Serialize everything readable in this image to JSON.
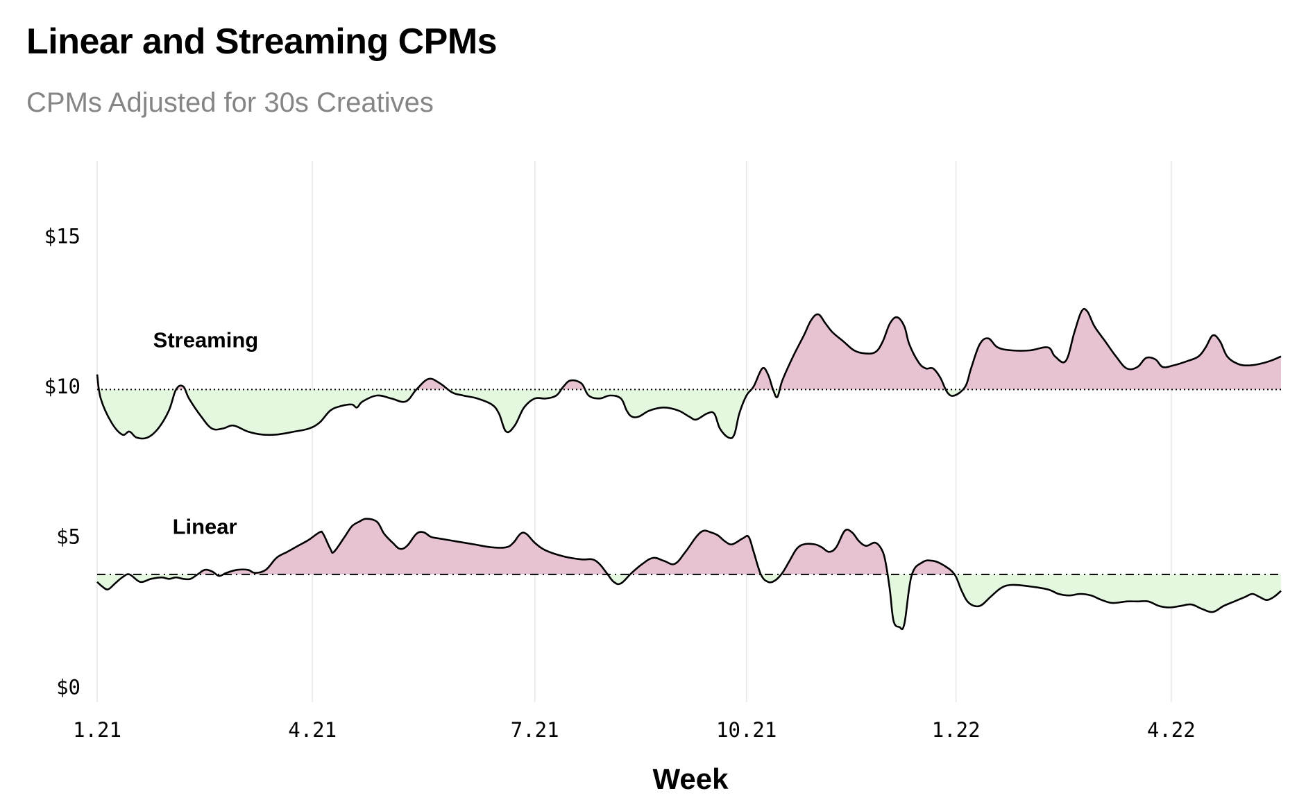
{
  "title": "Linear and Streaming CPMs",
  "subtitle": "CPMs Adjusted for 30s Creatives",
  "colors": {
    "above": "#e7c2d3",
    "below": "#e4f8df",
    "grid": "#e6e6e6",
    "line": "#000000",
    "text": "#000000"
  },
  "chart_data": {
    "type": "area",
    "title": "Linear and Streaming CPMs",
    "subtitle": "CPMs Adjusted for 30s Creatives",
    "xlabel": "Week",
    "ylabel": "",
    "x_range": [
      0,
      16.5
    ],
    "x_ticks": [
      {
        "value": 0,
        "label": "1.21"
      },
      {
        "value": 3,
        "label": "4.21"
      },
      {
        "value": 6.1,
        "label": "7.21"
      },
      {
        "value": 9.05,
        "label": "10.21"
      },
      {
        "value": 11.97,
        "label": "1.22"
      },
      {
        "value": 14.97,
        "label": "4.22"
      }
    ],
    "y_range": [
      -0.5,
      17.5
    ],
    "y_ticks": [
      {
        "value": 0,
        "label": "$0"
      },
      {
        "value": 5,
        "label": "$5"
      },
      {
        "value": 10,
        "label": "$10"
      },
      {
        "value": 15,
        "label": "$15"
      }
    ],
    "grid": "vertical",
    "series": [
      {
        "name": "Streaming",
        "baseline": 9.9,
        "baseline_style": "dotted",
        "label_at": [
          0.78,
          11.3
        ],
        "points": [
          [
            0,
            10.4
          ],
          [
            0.05,
            9.6
          ],
          [
            0.2,
            8.8
          ],
          [
            0.35,
            8.4
          ],
          [
            0.45,
            8.5
          ],
          [
            0.55,
            8.3
          ],
          [
            0.7,
            8.3
          ],
          [
            0.85,
            8.6
          ],
          [
            1.0,
            9.2
          ],
          [
            1.1,
            9.9
          ],
          [
            1.2,
            10.0
          ],
          [
            1.28,
            9.6
          ],
          [
            1.45,
            9.0
          ],
          [
            1.6,
            8.6
          ],
          [
            1.75,
            8.6
          ],
          [
            1.9,
            8.7
          ],
          [
            2.1,
            8.5
          ],
          [
            2.3,
            8.4
          ],
          [
            2.5,
            8.4
          ],
          [
            2.75,
            8.5
          ],
          [
            2.95,
            8.6
          ],
          [
            3.1,
            8.8
          ],
          [
            3.25,
            9.2
          ],
          [
            3.4,
            9.35
          ],
          [
            3.55,
            9.4
          ],
          [
            3.62,
            9.3
          ],
          [
            3.7,
            9.5
          ],
          [
            3.9,
            9.7
          ],
          [
            4.1,
            9.6
          ],
          [
            4.3,
            9.5
          ],
          [
            4.45,
            9.9
          ],
          [
            4.62,
            10.25
          ],
          [
            4.78,
            10.1
          ],
          [
            4.95,
            9.8
          ],
          [
            5.1,
            9.7
          ],
          [
            5.3,
            9.6
          ],
          [
            5.5,
            9.4
          ],
          [
            5.6,
            9.1
          ],
          [
            5.7,
            8.5
          ],
          [
            5.82,
            8.7
          ],
          [
            5.95,
            9.3
          ],
          [
            6.1,
            9.6
          ],
          [
            6.25,
            9.6
          ],
          [
            6.4,
            9.7
          ],
          [
            6.5,
            10.0
          ],
          [
            6.6,
            10.2
          ],
          [
            6.75,
            10.1
          ],
          [
            6.85,
            9.7
          ],
          [
            7.0,
            9.6
          ],
          [
            7.15,
            9.7
          ],
          [
            7.3,
            9.6
          ],
          [
            7.38,
            9.2
          ],
          [
            7.45,
            9.0
          ],
          [
            7.55,
            9.0
          ],
          [
            7.7,
            9.2
          ],
          [
            7.9,
            9.3
          ],
          [
            8.1,
            9.2
          ],
          [
            8.25,
            9.0
          ],
          [
            8.35,
            8.9
          ],
          [
            8.5,
            9.1
          ],
          [
            8.6,
            9.1
          ],
          [
            8.68,
            8.6
          ],
          [
            8.8,
            8.3
          ],
          [
            8.88,
            8.4
          ],
          [
            8.95,
            9.1
          ],
          [
            9.05,
            9.7
          ],
          [
            9.15,
            10.0
          ],
          [
            9.27,
            10.6
          ],
          [
            9.35,
            10.4
          ],
          [
            9.42,
            9.9
          ],
          [
            9.48,
            9.65
          ],
          [
            9.55,
            10.2
          ],
          [
            9.7,
            11.0
          ],
          [
            9.85,
            11.7
          ],
          [
            9.95,
            12.2
          ],
          [
            10.05,
            12.4
          ],
          [
            10.15,
            12.1
          ],
          [
            10.25,
            11.8
          ],
          [
            10.4,
            11.5
          ],
          [
            10.55,
            11.2
          ],
          [
            10.7,
            11.1
          ],
          [
            10.85,
            11.15
          ],
          [
            10.95,
            11.5
          ],
          [
            11.05,
            12.1
          ],
          [
            11.15,
            12.3
          ],
          [
            11.25,
            12.0
          ],
          [
            11.32,
            11.4
          ],
          [
            11.45,
            10.8
          ],
          [
            11.55,
            10.6
          ],
          [
            11.65,
            10.6
          ],
          [
            11.75,
            10.3
          ],
          [
            11.85,
            9.8
          ],
          [
            11.95,
            9.7
          ],
          [
            12.1,
            10.0
          ],
          [
            12.18,
            10.6
          ],
          [
            12.3,
            11.4
          ],
          [
            12.42,
            11.6
          ],
          [
            12.55,
            11.3
          ],
          [
            12.75,
            11.2
          ],
          [
            13.0,
            11.2
          ],
          [
            13.25,
            11.3
          ],
          [
            13.35,
            11.0
          ],
          [
            13.5,
            10.85
          ],
          [
            13.62,
            11.8
          ],
          [
            13.72,
            12.5
          ],
          [
            13.8,
            12.5
          ],
          [
            13.9,
            12.0
          ],
          [
            14.05,
            11.5
          ],
          [
            14.2,
            11.0
          ],
          [
            14.35,
            10.6
          ],
          [
            14.5,
            10.65
          ],
          [
            14.62,
            10.95
          ],
          [
            14.75,
            10.9
          ],
          [
            14.85,
            10.65
          ],
          [
            15.0,
            10.7
          ],
          [
            15.2,
            10.85
          ],
          [
            15.35,
            11.0
          ],
          [
            15.45,
            11.3
          ],
          [
            15.55,
            11.7
          ],
          [
            15.65,
            11.5
          ],
          [
            15.75,
            11.0
          ],
          [
            15.9,
            10.75
          ],
          [
            16.05,
            10.7
          ],
          [
            16.2,
            10.75
          ],
          [
            16.35,
            10.85
          ],
          [
            16.5,
            11.0
          ]
        ]
      },
      {
        "name": "Linear",
        "baseline": 3.75,
        "baseline_style": "dash-dot",
        "label_at": [
          1.05,
          5.1
        ],
        "points": [
          [
            0,
            3.5
          ],
          [
            0.07,
            3.35
          ],
          [
            0.15,
            3.25
          ],
          [
            0.25,
            3.45
          ],
          [
            0.35,
            3.65
          ],
          [
            0.45,
            3.75
          ],
          [
            0.6,
            3.5
          ],
          [
            0.75,
            3.6
          ],
          [
            0.9,
            3.65
          ],
          [
            1.0,
            3.6
          ],
          [
            1.1,
            3.65
          ],
          [
            1.2,
            3.6
          ],
          [
            1.3,
            3.6
          ],
          [
            1.4,
            3.75
          ],
          [
            1.5,
            3.9
          ],
          [
            1.6,
            3.85
          ],
          [
            1.7,
            3.7
          ],
          [
            1.8,
            3.8
          ],
          [
            1.95,
            3.9
          ],
          [
            2.1,
            3.9
          ],
          [
            2.2,
            3.8
          ],
          [
            2.35,
            3.9
          ],
          [
            2.5,
            4.3
          ],
          [
            2.65,
            4.5
          ],
          [
            2.8,
            4.7
          ],
          [
            2.95,
            4.9
          ],
          [
            3.1,
            5.15
          ],
          [
            3.15,
            5.1
          ],
          [
            3.25,
            4.6
          ],
          [
            3.3,
            4.5
          ],
          [
            3.45,
            5.0
          ],
          [
            3.55,
            5.35
          ],
          [
            3.65,
            5.5
          ],
          [
            3.75,
            5.6
          ],
          [
            3.9,
            5.5
          ],
          [
            4.0,
            5.1
          ],
          [
            4.12,
            4.8
          ],
          [
            4.22,
            4.6
          ],
          [
            4.32,
            4.7
          ],
          [
            4.45,
            5.1
          ],
          [
            4.55,
            5.15
          ],
          [
            4.65,
            5.0
          ],
          [
            4.75,
            4.95
          ],
          [
            5.0,
            4.85
          ],
          [
            5.25,
            4.75
          ],
          [
            5.5,
            4.65
          ],
          [
            5.7,
            4.65
          ],
          [
            5.8,
            4.8
          ],
          [
            5.9,
            5.1
          ],
          [
            5.98,
            5.1
          ],
          [
            6.1,
            4.8
          ],
          [
            6.25,
            4.55
          ],
          [
            6.5,
            4.35
          ],
          [
            6.75,
            4.25
          ],
          [
            6.9,
            4.25
          ],
          [
            7.0,
            4.1
          ],
          [
            7.1,
            3.8
          ],
          [
            7.2,
            3.5
          ],
          [
            7.3,
            3.45
          ],
          [
            7.45,
            3.8
          ],
          [
            7.6,
            4.1
          ],
          [
            7.75,
            4.3
          ],
          [
            7.9,
            4.2
          ],
          [
            8.05,
            4.1
          ],
          [
            8.2,
            4.5
          ],
          [
            8.35,
            5.0
          ],
          [
            8.45,
            5.2
          ],
          [
            8.55,
            5.15
          ],
          [
            8.65,
            5.05
          ],
          [
            8.75,
            4.85
          ],
          [
            8.85,
            4.75
          ],
          [
            9.0,
            4.95
          ],
          [
            9.08,
            5.0
          ],
          [
            9.15,
            4.5
          ],
          [
            9.25,
            3.75
          ],
          [
            9.35,
            3.5
          ],
          [
            9.45,
            3.55
          ],
          [
            9.55,
            3.8
          ],
          [
            9.65,
            4.2
          ],
          [
            9.75,
            4.6
          ],
          [
            9.85,
            4.75
          ],
          [
            10.0,
            4.75
          ],
          [
            10.1,
            4.65
          ],
          [
            10.2,
            4.5
          ],
          [
            10.3,
            4.65
          ],
          [
            10.42,
            5.2
          ],
          [
            10.52,
            5.15
          ],
          [
            10.62,
            4.85
          ],
          [
            10.72,
            4.7
          ],
          [
            10.85,
            4.8
          ],
          [
            10.95,
            4.5
          ],
          [
            11.0,
            4.0
          ],
          [
            11.05,
            3.2
          ],
          [
            11.1,
            2.2
          ],
          [
            11.18,
            2.0
          ],
          [
            11.25,
            2.1
          ],
          [
            11.35,
            3.7
          ],
          [
            11.5,
            4.15
          ],
          [
            11.65,
            4.2
          ],
          [
            11.8,
            4.05
          ],
          [
            11.95,
            3.75
          ],
          [
            12.05,
            3.2
          ],
          [
            12.15,
            2.8
          ],
          [
            12.3,
            2.7
          ],
          [
            12.45,
            3.0
          ],
          [
            12.6,
            3.3
          ],
          [
            12.75,
            3.4
          ],
          [
            13.0,
            3.35
          ],
          [
            13.25,
            3.25
          ],
          [
            13.4,
            3.1
          ],
          [
            13.55,
            3.05
          ],
          [
            13.7,
            3.1
          ],
          [
            13.85,
            3.05
          ],
          [
            14.0,
            2.9
          ],
          [
            14.15,
            2.8
          ],
          [
            14.35,
            2.85
          ],
          [
            14.5,
            2.85
          ],
          [
            14.65,
            2.85
          ],
          [
            14.8,
            2.7
          ],
          [
            14.95,
            2.65
          ],
          [
            15.1,
            2.7
          ],
          [
            15.25,
            2.75
          ],
          [
            15.4,
            2.6
          ],
          [
            15.55,
            2.5
          ],
          [
            15.7,
            2.7
          ],
          [
            15.85,
            2.85
          ],
          [
            16.0,
            3.0
          ],
          [
            16.1,
            3.1
          ],
          [
            16.2,
            3.0
          ],
          [
            16.3,
            2.9
          ],
          [
            16.4,
            3.0
          ],
          [
            16.5,
            3.2
          ]
        ]
      }
    ]
  }
}
